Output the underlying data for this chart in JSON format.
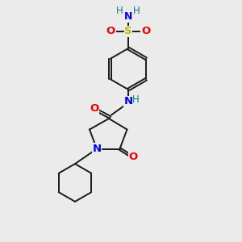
{
  "background_color": "#ebebeb",
  "bond_color": "#1a1a1a",
  "N_color": "#0000ee",
  "O_color": "#ee0000",
  "S_color": "#bbbb00",
  "H_color": "#008080",
  "figsize": [
    3.0,
    3.0
  ],
  "dpi": 100,
  "xlim": [
    0,
    10
  ],
  "ylim": [
    0,
    10
  ]
}
